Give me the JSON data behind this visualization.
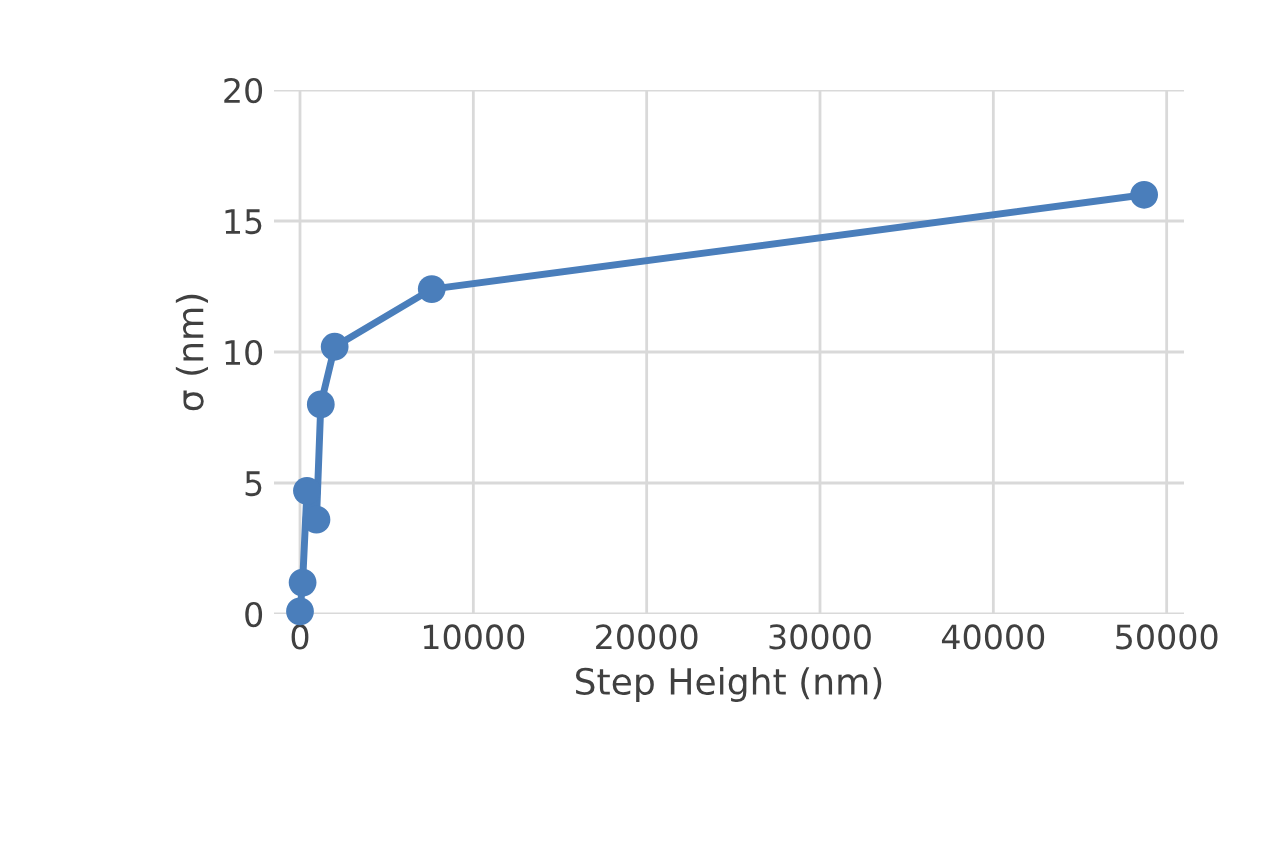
{
  "chart_data": {
    "type": "line",
    "xlabel": "Step Height (nm)",
    "ylabel": "σ (nm)",
    "xlim": [
      -1500,
      51000
    ],
    "ylim": [
      0,
      20
    ],
    "xticks": [
      0,
      10000,
      20000,
      30000,
      40000,
      50000
    ],
    "yticks": [
      0,
      5,
      10,
      15,
      20
    ],
    "grid": true,
    "marker": "circle",
    "line_style": "solid",
    "series": [
      {
        "color": "#4a7ebb",
        "x": [
          0,
          150,
          400,
          950,
          1200,
          2000,
          7600,
          48700
        ],
        "values": [
          0.1,
          1.2,
          4.7,
          3.6,
          8.0,
          10.2,
          12.4,
          16.0
        ]
      }
    ]
  }
}
